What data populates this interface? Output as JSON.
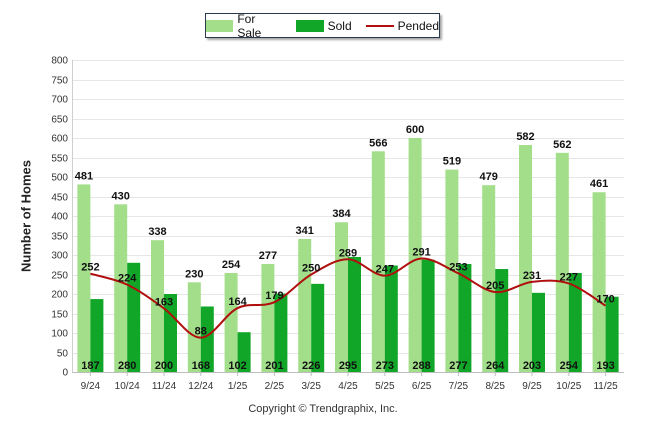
{
  "chart_data": {
    "type": "bar",
    "categories": [
      "9/24",
      "10/24",
      "11/24",
      "12/24",
      "1/25",
      "2/25",
      "3/25",
      "4/25",
      "5/25",
      "6/25",
      "7/25",
      "8/25",
      "9/25",
      "10/25",
      "11/25"
    ],
    "series": [
      {
        "name": "For Sale",
        "type": "bar",
        "color": "#a3df8a",
        "values": [
          481,
          430,
          338,
          230,
          254,
          277,
          341,
          384,
          566,
          600,
          519,
          479,
          582,
          562,
          461
        ]
      },
      {
        "name": "Sold",
        "type": "bar",
        "color": "#12a629",
        "values": [
          187,
          280,
          200,
          168,
          102,
          201,
          226,
          295,
          273,
          288,
          277,
          264,
          203,
          254,
          193
        ]
      },
      {
        "name": "Pended",
        "type": "line",
        "color": "#b10e0e",
        "values": [
          252,
          224,
          163,
          88,
          164,
          179,
          250,
          289,
          247,
          291,
          253,
          205,
          231,
          227,
          170
        ]
      }
    ],
    "ylabel": "Number of Homes",
    "xlabel": "",
    "ylim": [
      0,
      800
    ],
    "yticks": [
      0,
      50,
      100,
      150,
      200,
      250,
      300,
      350,
      400,
      450,
      500,
      550,
      600,
      650,
      700,
      750,
      800
    ],
    "grid": true,
    "legend": "top-center"
  },
  "footer": {
    "copyright": "Copyright © Trendgraphix, Inc."
  }
}
